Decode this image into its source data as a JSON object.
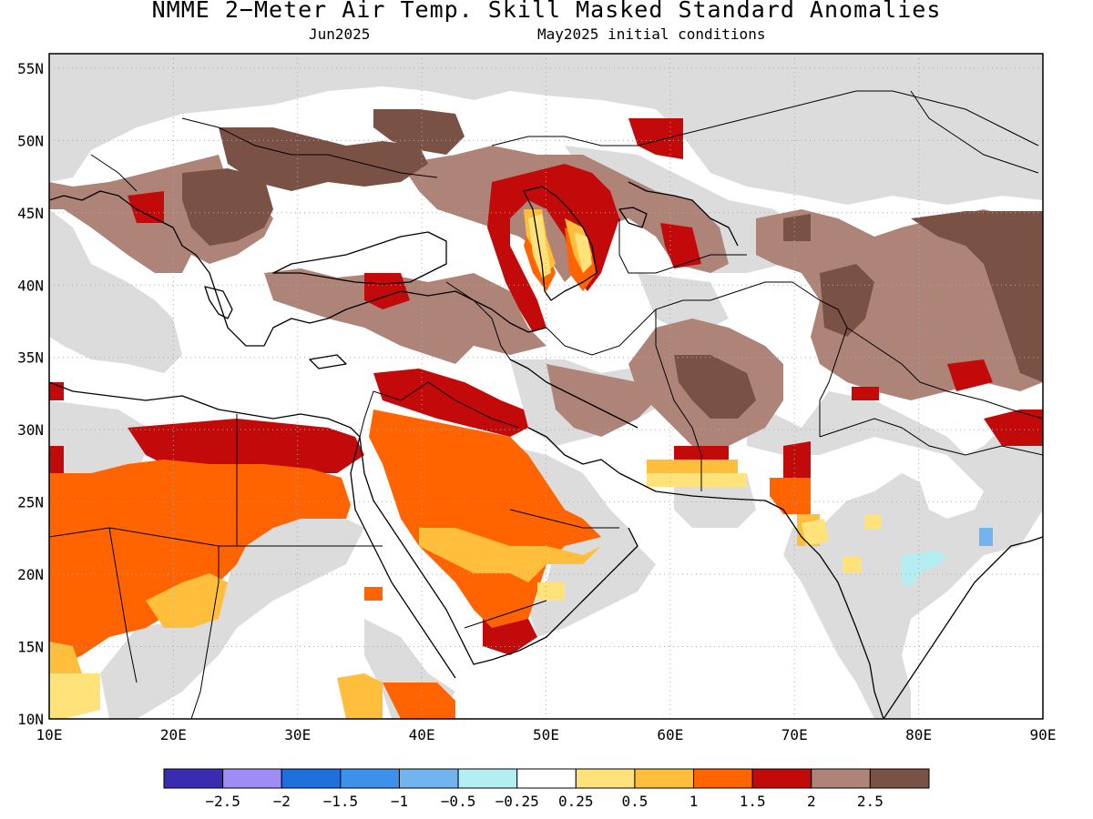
{
  "header": {
    "title": "NMME 2−Meter Air Temp. Skill Masked Standard Anomalies",
    "target_month": "Jun2025",
    "initial_conditions": "May2025 initial conditions"
  },
  "axes": {
    "lon_labels": [
      "10E",
      "20E",
      "30E",
      "40E",
      "50E",
      "60E",
      "70E",
      "80E",
      "90E"
    ],
    "lat_labels": [
      "10N",
      "15N",
      "20N",
      "25N",
      "30N",
      "35N",
      "40N",
      "45N",
      "50N",
      "55N"
    ],
    "lon_range": [
      10,
      90
    ],
    "lat_range": [
      10,
      56
    ],
    "grid": true
  },
  "colorbar": {
    "colors": [
      "#3a2cb0",
      "#9f8cf5",
      "#1f6fdc",
      "#3d91ea",
      "#72b4f0",
      "#b4eef2",
      "#ffffff",
      "#ffe27a",
      "#ffbe3c",
      "#ff6400",
      "#c20a0a",
      "#ae8378",
      "#7a5245"
    ],
    "labels": [
      "−2.5",
      "−2",
      "−1.5",
      "−1",
      "−0.5",
      "−0.25",
      "0.25",
      "0.5",
      "1",
      "1.5",
      "2",
      "2.5"
    ]
  },
  "colors": {
    "no_skill_gray": "#dcdcdc",
    "warm_brown": "#ae8378",
    "dark_brown": "#7a5245",
    "red": "#c20a0a",
    "orange": "#ff6400",
    "light_orange": "#ffbe3c",
    "yellow": "#ffe27a",
    "light_cyan": "#b4eef2",
    "light_blue": "#72b4f0"
  }
}
